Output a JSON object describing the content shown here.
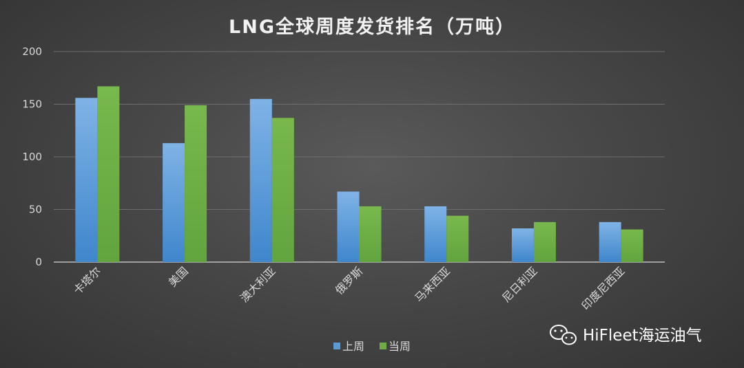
{
  "chart_data": {
    "type": "bar",
    "title": "LNG全球周度发货排名（万吨）",
    "categories": [
      "卡塔尔",
      "美国",
      "澳大利亚",
      "俄罗斯",
      "马来西亚",
      "尼日利亚",
      "印度尼西亚"
    ],
    "series": [
      {
        "name": "上周",
        "values": [
          156,
          113,
          155,
          67,
          53,
          32,
          38
        ],
        "color": "#5b9bd5"
      },
      {
        "name": "当周",
        "values": [
          167,
          149,
          137,
          53,
          44,
          38,
          31
        ],
        "color": "#70ad47"
      }
    ],
    "xlabel": "",
    "ylabel": "",
    "ylim": [
      0,
      200
    ],
    "yticks": [
      0,
      50,
      100,
      150,
      200
    ],
    "grid": true,
    "legend_position": "bottom"
  },
  "watermark": {
    "text": "HiFleet海运油气",
    "icon": "wechat-icon"
  }
}
